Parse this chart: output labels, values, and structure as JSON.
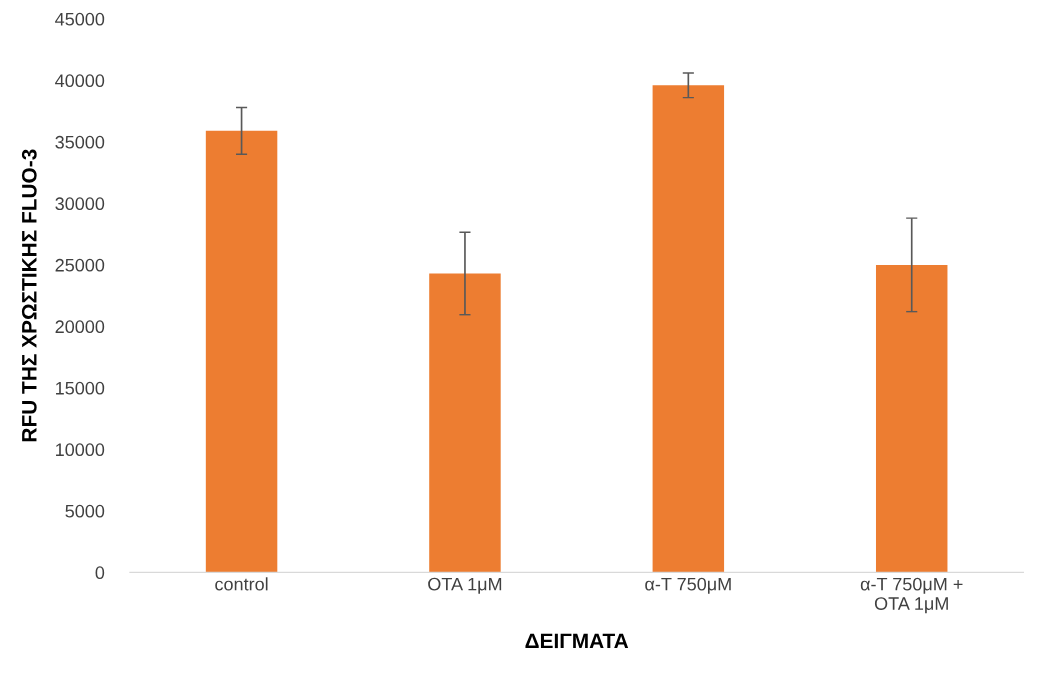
{
  "chart_data": {
    "type": "bar",
    "xlabel": "ΔΕΙΓΜΑΤΑ",
    "ylabel": "RFU ΤΗΣ ΧΡΩΣΤΙΚΗΣ FLUO-3",
    "categories": [
      "control",
      "OTA 1μM",
      "α-T 750μM",
      "α-T 750μM + OTA 1μM"
    ],
    "values": [
      35900,
      24300,
      39600,
      25000
    ],
    "errors": [
      1900,
      3350,
      1000,
      3800
    ],
    "color": "#ed7d31",
    "ylim": [
      0,
      45000
    ],
    "yticks": [
      0,
      5000,
      10000,
      15000,
      20000,
      25000,
      30000,
      35000,
      40000,
      45000
    ],
    "grid": false,
    "legend": false
  }
}
